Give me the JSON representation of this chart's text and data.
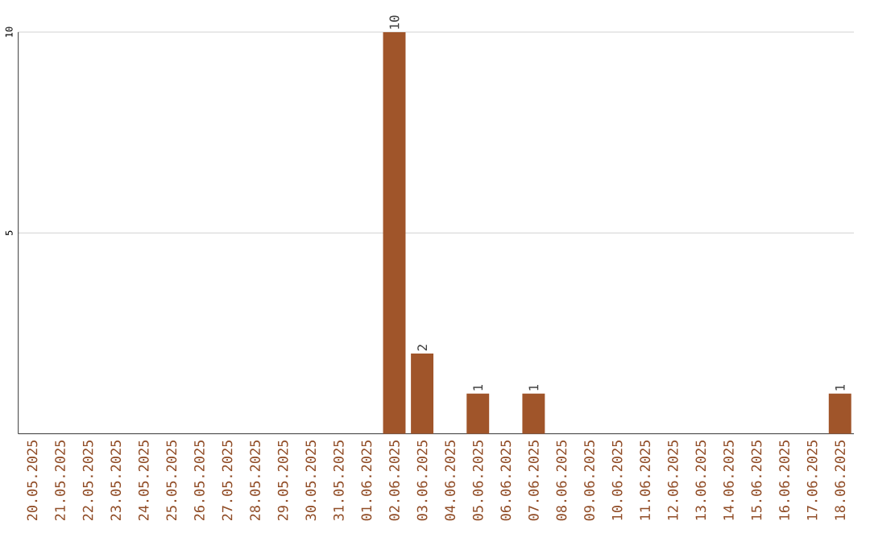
{
  "chart_data": {
    "type": "bar",
    "categories": [
      "20.05.2025",
      "21.05.2025",
      "22.05.2025",
      "23.05.2025",
      "24.05.2025",
      "25.05.2025",
      "26.05.2025",
      "27.05.2025",
      "28.05.2025",
      "29.05.2025",
      "30.05.2025",
      "31.05.2025",
      "01.06.2025",
      "02.06.2025",
      "03.06.2025",
      "04.06.2025",
      "05.06.2025",
      "06.06.2025",
      "07.06.2025",
      "08.06.2025",
      "09.06.2025",
      "10.06.2025",
      "11.06.2025",
      "12.06.2025",
      "13.06.2025",
      "14.06.2025",
      "15.06.2025",
      "16.06.2025",
      "17.06.2025",
      "18.06.2025"
    ],
    "values": [
      0,
      0,
      0,
      0,
      0,
      0,
      0,
      0,
      0,
      0,
      0,
      0,
      0,
      10,
      2,
      0,
      1,
      0,
      1,
      0,
      0,
      0,
      0,
      0,
      0,
      0,
      0,
      0,
      0,
      1
    ],
    "value_labels": [
      null,
      null,
      null,
      null,
      null,
      null,
      null,
      null,
      null,
      null,
      null,
      null,
      null,
      "10",
      "2",
      null,
      "1",
      null,
      "1",
      null,
      null,
      null,
      null,
      null,
      null,
      null,
      null,
      null,
      null,
      "1"
    ],
    "color": "#a0552a",
    "ylim": [
      0,
      10
    ],
    "yticks": [
      5,
      10
    ],
    "grid": "y"
  }
}
